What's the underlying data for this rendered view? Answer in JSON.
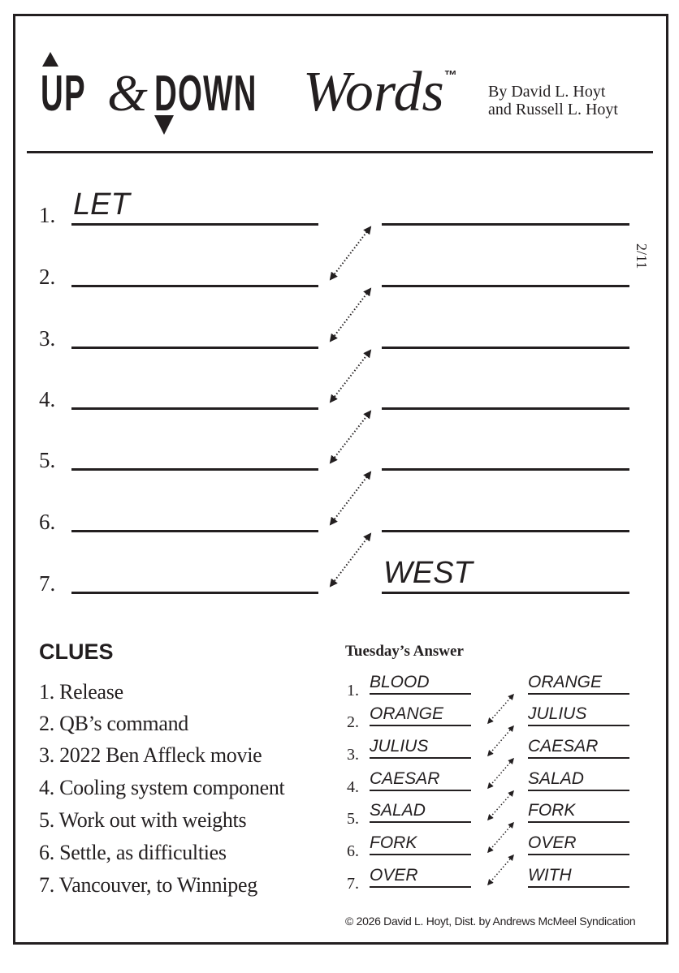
{
  "title": {
    "logo_up": "UP",
    "logo_amp": "&",
    "logo_down": "DOWN",
    "logo_words": "Words",
    "trademark": "™"
  },
  "byline": [
    "By David L. Hoyt",
    "and Russell L. Hoyt"
  ],
  "date": "2/11",
  "puzzle": {
    "rows": [
      {
        "number": "1.",
        "left": "LET",
        "right": ""
      },
      {
        "number": "2.",
        "left": "",
        "right": ""
      },
      {
        "number": "3.",
        "left": "",
        "right": ""
      },
      {
        "number": "4.",
        "left": "",
        "right": ""
      },
      {
        "number": "5.",
        "left": "",
        "right": ""
      },
      {
        "number": "6.",
        "left": "",
        "right": ""
      },
      {
        "number": "7.",
        "left": "",
        "right": "WEST"
      }
    ]
  },
  "clues": {
    "heading": "CLUES",
    "items": [
      "1. Release",
      "2. QB’s command",
      "3. 2022 Ben Affleck movie",
      "4. Cooling system component",
      "5. Work out with weights",
      "6. Settle, as difficulties",
      "7. Vancouver, to Winnipeg"
    ]
  },
  "previous_answer": {
    "heading": "Tuesday’s Answer",
    "rows": [
      {
        "number": "1.",
        "left": "BLOOD",
        "right": "ORANGE"
      },
      {
        "number": "2.",
        "left": "ORANGE",
        "right": "JULIUS"
      },
      {
        "number": "3.",
        "left": "JULIUS",
        "right": "CAESAR"
      },
      {
        "number": "4.",
        "left": "CAESAR",
        "right": "SALAD"
      },
      {
        "number": "5.",
        "left": "SALAD",
        "right": "FORK"
      },
      {
        "number": "6.",
        "left": "FORK",
        "right": "OVER"
      },
      {
        "number": "7.",
        "left": "OVER",
        "right": "WITH"
      }
    ]
  },
  "copyright": "© 2026 David L. Hoyt, Dist. by Andrews McMeel Syndication"
}
